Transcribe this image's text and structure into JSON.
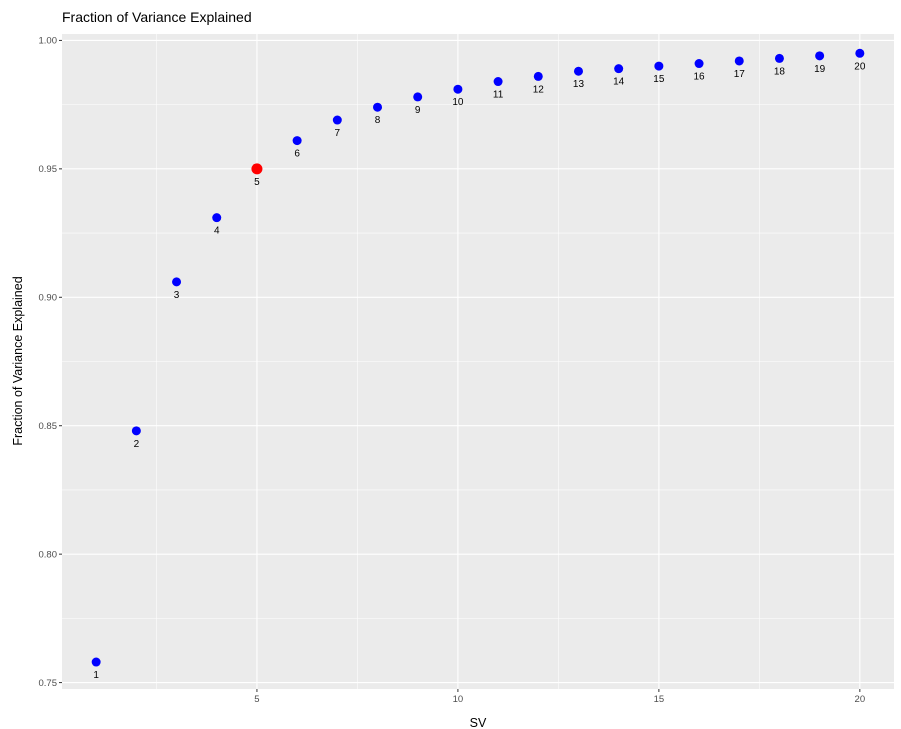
{
  "chart_data": {
    "type": "scatter",
    "title": "Fraction of Variance Explained",
    "xlabel": "SV",
    "ylabel": "Fraction of Variance Explained",
    "xlim": [
      0.15,
      20.85
    ],
    "ylim": [
      0.7475,
      1.0025
    ],
    "x_ticks": [
      5,
      10,
      15,
      20
    ],
    "x_tick_labels": [
      "5",
      "10",
      "15",
      "20"
    ],
    "y_ticks": [
      0.75,
      0.8,
      0.85,
      0.9,
      0.95,
      1.0
    ],
    "y_tick_labels": [
      "0.75",
      "0.80",
      "0.85",
      "0.90",
      "0.95",
      "1.00"
    ],
    "grid": true,
    "background": "#ebebeb",
    "grid_color": "#ffffff",
    "point_color": "#0000ff",
    "highlight_color": "#ff0000",
    "highlight_x": 5,
    "x": [
      1,
      2,
      3,
      4,
      5,
      6,
      7,
      8,
      9,
      10,
      11,
      12,
      13,
      14,
      15,
      16,
      17,
      18,
      19,
      20
    ],
    "y": [
      0.758,
      0.848,
      0.906,
      0.931,
      0.95,
      0.961,
      0.969,
      0.974,
      0.978,
      0.981,
      0.984,
      0.986,
      0.988,
      0.989,
      0.99,
      0.991,
      0.992,
      0.993,
      0.994,
      0.995
    ],
    "point_labels": [
      "1",
      "2",
      "3",
      "4",
      "5",
      "6",
      "7",
      "8",
      "9",
      "10",
      "11",
      "12",
      "13",
      "14",
      "15",
      "16",
      "17",
      "18",
      "19",
      "20"
    ]
  }
}
